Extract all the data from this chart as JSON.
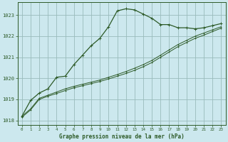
{
  "title": "Graphe pression niveau de la mer (hPa)",
  "bg_color": "#cce8ee",
  "grid_color": "#99bbbb",
  "line_color": "#2d5a27",
  "xlim": [
    -0.5,
    23.5
  ],
  "ylim": [
    1017.8,
    1023.6
  ],
  "yticks": [
    1018,
    1019,
    1020,
    1021,
    1022,
    1023
  ],
  "xticks": [
    0,
    1,
    2,
    3,
    4,
    5,
    6,
    7,
    8,
    9,
    10,
    11,
    12,
    13,
    14,
    15,
    16,
    17,
    18,
    19,
    20,
    21,
    22,
    23
  ],
  "series1_x": [
    0,
    1,
    2,
    3,
    4,
    5,
    6,
    7,
    8,
    9,
    10,
    11,
    12,
    13,
    14,
    15,
    16,
    17,
    18,
    19,
    20,
    21,
    22,
    23
  ],
  "series1_y": [
    1018.2,
    1018.55,
    1019.05,
    1019.2,
    1019.35,
    1019.5,
    1019.62,
    1019.72,
    1019.82,
    1019.92,
    1020.05,
    1020.18,
    1020.32,
    1020.48,
    1020.65,
    1020.85,
    1021.1,
    1021.35,
    1021.6,
    1021.8,
    1022.0,
    1022.15,
    1022.3,
    1022.45
  ],
  "series2_x": [
    0,
    1,
    2,
    3,
    4,
    5,
    6,
    7,
    8,
    9,
    10,
    11,
    12,
    13,
    14,
    15,
    16,
    17,
    18,
    19,
    20,
    21,
    22,
    23
  ],
  "series2_y": [
    1018.15,
    1018.5,
    1019.0,
    1019.15,
    1019.28,
    1019.42,
    1019.55,
    1019.65,
    1019.75,
    1019.85,
    1019.97,
    1020.1,
    1020.23,
    1020.38,
    1020.55,
    1020.75,
    1021.0,
    1021.25,
    1021.5,
    1021.7,
    1021.9,
    1022.05,
    1022.22,
    1022.38
  ],
  "series3_x": [
    0,
    1,
    2,
    3,
    4,
    5,
    6,
    7,
    8,
    9,
    10,
    11,
    12,
    13,
    14,
    15,
    16,
    17,
    18,
    19,
    20,
    21,
    22,
    23
  ],
  "series3_y": [
    1018.2,
    1018.95,
    1019.3,
    1019.5,
    1020.05,
    1020.1,
    1020.65,
    1021.1,
    1021.55,
    1021.9,
    1022.45,
    1023.2,
    1023.3,
    1023.25,
    1023.05,
    1022.85,
    1022.55,
    1022.55,
    1022.4,
    1022.4,
    1022.35,
    1022.4,
    1022.5,
    1022.6
  ]
}
